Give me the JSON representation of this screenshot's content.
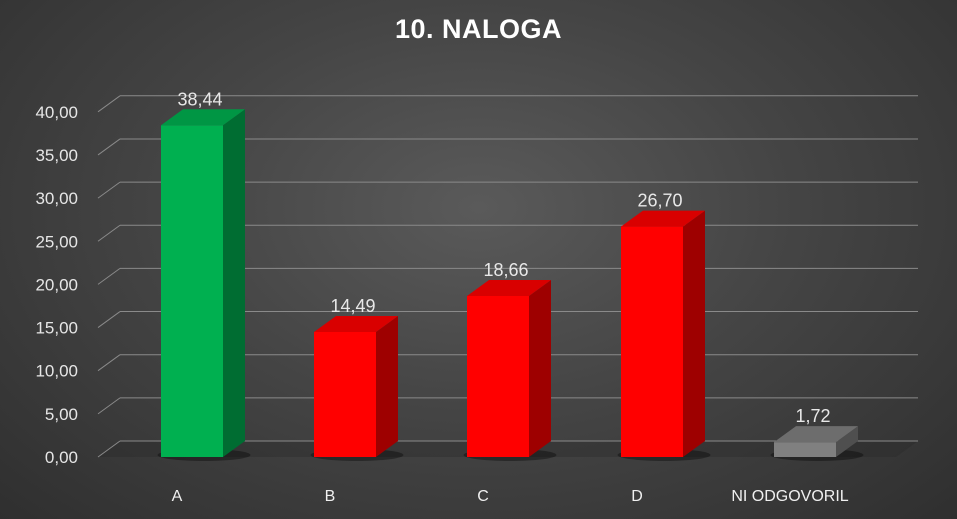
{
  "chart_data": {
    "type": "bar",
    "title": "10. NALOGA",
    "categories": [
      "A",
      "B",
      "C",
      "D",
      "NI ODGOVORIL"
    ],
    "values": [
      38.44,
      14.49,
      18.66,
      26.7,
      1.72
    ],
    "value_labels": [
      "38,44",
      "14,49",
      "18,66",
      "26,70",
      "1,72"
    ],
    "bar_colors": [
      "#00b050",
      "#ff0000",
      "#ff0000",
      "#ff0000",
      "#808080"
    ],
    "ylim": [
      0,
      40
    ],
    "yticks": [
      0,
      5,
      10,
      15,
      20,
      25,
      30,
      35,
      40
    ],
    "ytick_labels": [
      "0,00",
      "5,00",
      "10,00",
      "15,00",
      "20,00",
      "25,00",
      "30,00",
      "35,00",
      "40,00"
    ],
    "xlabel": "",
    "ylabel": "",
    "grid": true,
    "legend": false,
    "style": "3d-column"
  }
}
